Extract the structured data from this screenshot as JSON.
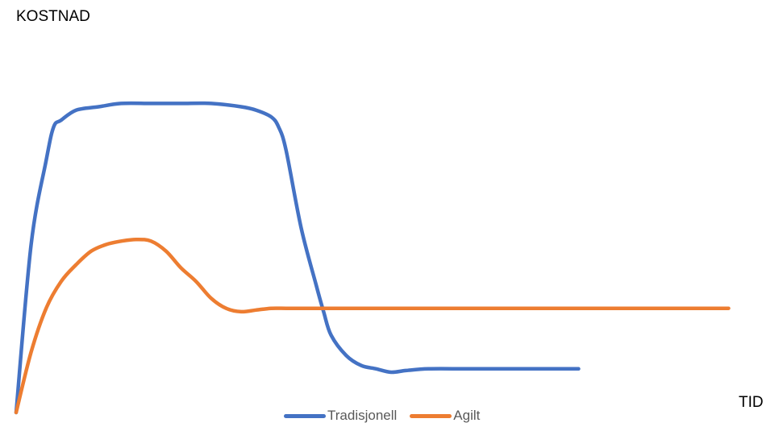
{
  "chart_data": {
    "type": "line",
    "title": "",
    "xlabel": "TID",
    "ylabel": "KOSTNAD",
    "xlim": [
      0,
      100
    ],
    "ylim": [
      0,
      100
    ],
    "grid": false,
    "legend": "bottom",
    "series": [
      {
        "name": "Tradisjonell",
        "color": "#4472C4",
        "x": [
          0,
          2,
          4,
          5,
          6,
          8,
          11,
          14,
          18,
          22,
          26,
          30,
          32,
          34,
          35,
          36,
          38,
          40,
          41,
          42,
          44,
          46,
          48,
          50,
          52,
          55,
          60,
          65,
          70,
          75
        ],
        "y": [
          0,
          50,
          75,
          85,
          87,
          90,
          91,
          92,
          92,
          92,
          92,
          91,
          90,
          88,
          85,
          78,
          55,
          38,
          30,
          23,
          17,
          14,
          13,
          12,
          12.5,
          13,
          13,
          13,
          13,
          13
        ]
      },
      {
        "name": "Agilt",
        "color": "#ED7D31",
        "x": [
          0,
          2,
          4,
          6,
          8,
          10,
          12,
          14,
          16,
          18,
          20,
          22,
          24,
          26,
          28,
          30,
          32,
          34,
          36,
          38,
          40,
          45,
          50,
          60,
          70,
          80,
          90,
          95
        ],
        "y": [
          0,
          18,
          31,
          39,
          44,
          48,
          50,
          51,
          51.5,
          51,
          48,
          43,
          39,
          34,
          31,
          30,
          30.5,
          31,
          31,
          31,
          31,
          31,
          31,
          31,
          31,
          31,
          31,
          31
        ]
      }
    ]
  }
}
